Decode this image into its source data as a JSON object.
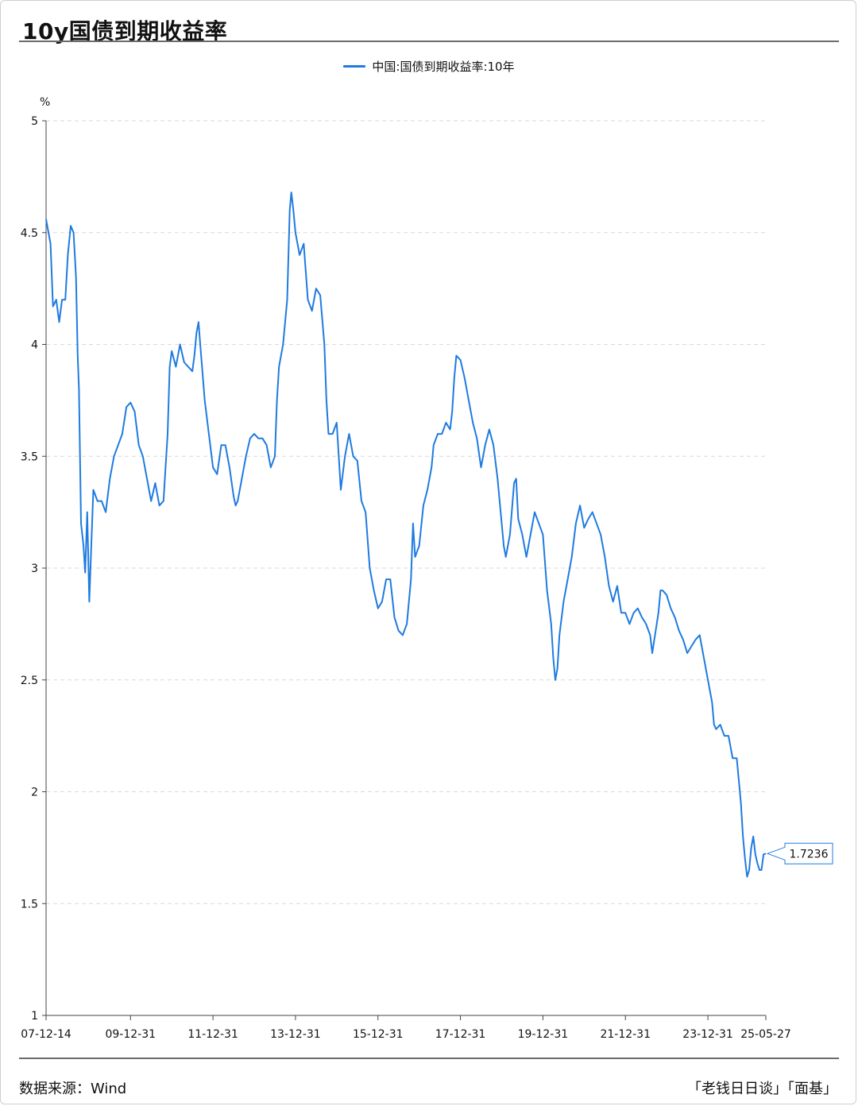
{
  "page": {
    "title": "10y国债到期收益率",
    "source": "数据来源：Wind",
    "credit": "「老钱日日谈」「面基」"
  },
  "chart_data": {
    "type": "line",
    "title": "10y国债到期收益率",
    "ylabel": "%",
    "ylim": [
      1,
      5
    ],
    "yticks": [
      1,
      1.5,
      2,
      2.5,
      3,
      3.5,
      4,
      4.5,
      5
    ],
    "ytick_labels": [
      "1",
      "1.5",
      "2",
      "2.5",
      "3",
      "3.5",
      "4",
      "4.5",
      "5"
    ],
    "xlim": [
      2007.953,
      2025.405
    ],
    "xticks": [
      2007.953,
      2010.0,
      2012.0,
      2014.0,
      2016.0,
      2018.0,
      2020.0,
      2022.0,
      2024.0,
      2025.405
    ],
    "xtick_labels": [
      "07-12-14",
      "09-12-31",
      "11-12-31",
      "13-12-31",
      "15-12-31",
      "17-12-31",
      "19-12-31",
      "21-12-31",
      "23-12-31",
      "25-05-27"
    ],
    "grid": true,
    "legend_position": "top-center",
    "last_value_label": "1.7236",
    "series": [
      {
        "name": "中国:国债到期收益率:10年",
        "color": "#1f7be0",
        "points": [
          [
            2007.953,
            4.56
          ],
          [
            2008.06,
            4.45
          ],
          [
            2008.12,
            4.17
          ],
          [
            2008.2,
            4.2
          ],
          [
            2008.27,
            4.1
          ],
          [
            2008.34,
            4.2
          ],
          [
            2008.42,
            4.2
          ],
          [
            2008.48,
            4.4
          ],
          [
            2008.55,
            4.53
          ],
          [
            2008.62,
            4.5
          ],
          [
            2008.68,
            4.3
          ],
          [
            2008.72,
            3.95
          ],
          [
            2008.75,
            3.8
          ],
          [
            2008.8,
            3.2
          ],
          [
            2008.86,
            3.1
          ],
          [
            2008.9,
            2.98
          ],
          [
            2008.95,
            3.25
          ],
          [
            2009.0,
            2.85
          ],
          [
            2009.05,
            3.1
          ],
          [
            2009.1,
            3.35
          ],
          [
            2009.2,
            3.3
          ],
          [
            2009.3,
            3.3
          ],
          [
            2009.4,
            3.25
          ],
          [
            2009.5,
            3.4
          ],
          [
            2009.6,
            3.5
          ],
          [
            2009.7,
            3.55
          ],
          [
            2009.8,
            3.6
          ],
          [
            2009.9,
            3.72
          ],
          [
            2010.0,
            3.74
          ],
          [
            2010.1,
            3.7
          ],
          [
            2010.2,
            3.55
          ],
          [
            2010.3,
            3.5
          ],
          [
            2010.4,
            3.4
          ],
          [
            2010.5,
            3.3
          ],
          [
            2010.6,
            3.38
          ],
          [
            2010.7,
            3.28
          ],
          [
            2010.8,
            3.3
          ],
          [
            2010.85,
            3.45
          ],
          [
            2010.9,
            3.6
          ],
          [
            2010.95,
            3.9
          ],
          [
            2011.0,
            3.97
          ],
          [
            2011.1,
            3.9
          ],
          [
            2011.2,
            4.0
          ],
          [
            2011.3,
            3.92
          ],
          [
            2011.4,
            3.9
          ],
          [
            2011.5,
            3.88
          ],
          [
            2011.55,
            3.95
          ],
          [
            2011.6,
            4.05
          ],
          [
            2011.65,
            4.1
          ],
          [
            2011.7,
            3.98
          ],
          [
            2011.8,
            3.75
          ],
          [
            2011.9,
            3.6
          ],
          [
            2012.0,
            3.45
          ],
          [
            2012.1,
            3.42
          ],
          [
            2012.2,
            3.55
          ],
          [
            2012.3,
            3.55
          ],
          [
            2012.4,
            3.45
          ],
          [
            2012.5,
            3.32
          ],
          [
            2012.55,
            3.28
          ],
          [
            2012.6,
            3.3
          ],
          [
            2012.7,
            3.4
          ],
          [
            2012.8,
            3.5
          ],
          [
            2012.9,
            3.58
          ],
          [
            2013.0,
            3.6
          ],
          [
            2013.1,
            3.58
          ],
          [
            2013.2,
            3.58
          ],
          [
            2013.3,
            3.55
          ],
          [
            2013.4,
            3.45
          ],
          [
            2013.5,
            3.5
          ],
          [
            2013.55,
            3.75
          ],
          [
            2013.6,
            3.9
          ],
          [
            2013.7,
            4.0
          ],
          [
            2013.8,
            4.2
          ],
          [
            2013.86,
            4.6
          ],
          [
            2013.9,
            4.68
          ],
          [
            2013.95,
            4.6
          ],
          [
            2014.0,
            4.5
          ],
          [
            2014.1,
            4.4
          ],
          [
            2014.2,
            4.45
          ],
          [
            2014.3,
            4.2
          ],
          [
            2014.4,
            4.15
          ],
          [
            2014.5,
            4.25
          ],
          [
            2014.6,
            4.22
          ],
          [
            2014.7,
            4.0
          ],
          [
            2014.75,
            3.75
          ],
          [
            2014.8,
            3.6
          ],
          [
            2014.9,
            3.6
          ],
          [
            2015.0,
            3.65
          ],
          [
            2015.1,
            3.35
          ],
          [
            2015.2,
            3.5
          ],
          [
            2015.3,
            3.6
          ],
          [
            2015.4,
            3.5
          ],
          [
            2015.5,
            3.48
          ],
          [
            2015.6,
            3.3
          ],
          [
            2015.7,
            3.25
          ],
          [
            2015.8,
            3.0
          ],
          [
            2015.9,
            2.9
          ],
          [
            2016.0,
            2.82
          ],
          [
            2016.1,
            2.85
          ],
          [
            2016.2,
            2.95
          ],
          [
            2016.3,
            2.95
          ],
          [
            2016.4,
            2.78
          ],
          [
            2016.5,
            2.72
          ],
          [
            2016.6,
            2.7
          ],
          [
            2016.7,
            2.75
          ],
          [
            2016.8,
            2.95
          ],
          [
            2016.85,
            3.2
          ],
          [
            2016.9,
            3.05
          ],
          [
            2017.0,
            3.1
          ],
          [
            2017.1,
            3.28
          ],
          [
            2017.2,
            3.35
          ],
          [
            2017.3,
            3.45
          ],
          [
            2017.35,
            3.55
          ],
          [
            2017.45,
            3.6
          ],
          [
            2017.55,
            3.6
          ],
          [
            2017.65,
            3.65
          ],
          [
            2017.75,
            3.62
          ],
          [
            2017.8,
            3.7
          ],
          [
            2017.85,
            3.85
          ],
          [
            2017.9,
            3.95
          ],
          [
            2018.0,
            3.93
          ],
          [
            2018.1,
            3.85
          ],
          [
            2018.2,
            3.75
          ],
          [
            2018.3,
            3.65
          ],
          [
            2018.4,
            3.58
          ],
          [
            2018.5,
            3.45
          ],
          [
            2018.6,
            3.55
          ],
          [
            2018.7,
            3.62
          ],
          [
            2018.8,
            3.55
          ],
          [
            2018.9,
            3.4
          ],
          [
            2019.0,
            3.2
          ],
          [
            2019.05,
            3.1
          ],
          [
            2019.1,
            3.05
          ],
          [
            2019.2,
            3.15
          ],
          [
            2019.3,
            3.38
          ],
          [
            2019.35,
            3.4
          ],
          [
            2019.4,
            3.22
          ],
          [
            2019.5,
            3.15
          ],
          [
            2019.6,
            3.05
          ],
          [
            2019.7,
            3.15
          ],
          [
            2019.8,
            3.25
          ],
          [
            2019.9,
            3.2
          ],
          [
            2020.0,
            3.15
          ],
          [
            2020.1,
            2.9
          ],
          [
            2020.2,
            2.75
          ],
          [
            2020.25,
            2.6
          ],
          [
            2020.3,
            2.5
          ],
          [
            2020.35,
            2.55
          ],
          [
            2020.4,
            2.7
          ],
          [
            2020.5,
            2.85
          ],
          [
            2020.6,
            2.95
          ],
          [
            2020.7,
            3.05
          ],
          [
            2020.8,
            3.2
          ],
          [
            2020.9,
            3.28
          ],
          [
            2021.0,
            3.18
          ],
          [
            2021.1,
            3.22
          ],
          [
            2021.2,
            3.25
          ],
          [
            2021.3,
            3.2
          ],
          [
            2021.4,
            3.15
          ],
          [
            2021.5,
            3.05
          ],
          [
            2021.6,
            2.92
          ],
          [
            2021.7,
            2.85
          ],
          [
            2021.8,
            2.92
          ],
          [
            2021.9,
            2.8
          ],
          [
            2022.0,
            2.8
          ],
          [
            2022.1,
            2.75
          ],
          [
            2022.2,
            2.8
          ],
          [
            2022.3,
            2.82
          ],
          [
            2022.4,
            2.78
          ],
          [
            2022.5,
            2.75
          ],
          [
            2022.6,
            2.7
          ],
          [
            2022.65,
            2.62
          ],
          [
            2022.7,
            2.68
          ],
          [
            2022.8,
            2.8
          ],
          [
            2022.85,
            2.9
          ],
          [
            2022.9,
            2.9
          ],
          [
            2023.0,
            2.88
          ],
          [
            2023.1,
            2.82
          ],
          [
            2023.2,
            2.78
          ],
          [
            2023.3,
            2.72
          ],
          [
            2023.4,
            2.68
          ],
          [
            2023.5,
            2.62
          ],
          [
            2023.6,
            2.65
          ],
          [
            2023.7,
            2.68
          ],
          [
            2023.8,
            2.7
          ],
          [
            2023.9,
            2.6
          ],
          [
            2024.0,
            2.5
          ],
          [
            2024.1,
            2.4
          ],
          [
            2024.15,
            2.3
          ],
          [
            2024.2,
            2.28
          ],
          [
            2024.3,
            2.3
          ],
          [
            2024.4,
            2.25
          ],
          [
            2024.5,
            2.25
          ],
          [
            2024.6,
            2.15
          ],
          [
            2024.7,
            2.15
          ],
          [
            2024.75,
            2.05
          ],
          [
            2024.8,
            1.95
          ],
          [
            2024.85,
            1.8
          ],
          [
            2024.9,
            1.7
          ],
          [
            2024.95,
            1.62
          ],
          [
            2025.0,
            1.65
          ],
          [
            2025.05,
            1.75
          ],
          [
            2025.1,
            1.8
          ],
          [
            2025.15,
            1.72
          ],
          [
            2025.2,
            1.68
          ],
          [
            2025.25,
            1.65
          ],
          [
            2025.3,
            1.65
          ],
          [
            2025.35,
            1.72
          ],
          [
            2025.405,
            1.7236
          ]
        ]
      }
    ]
  }
}
